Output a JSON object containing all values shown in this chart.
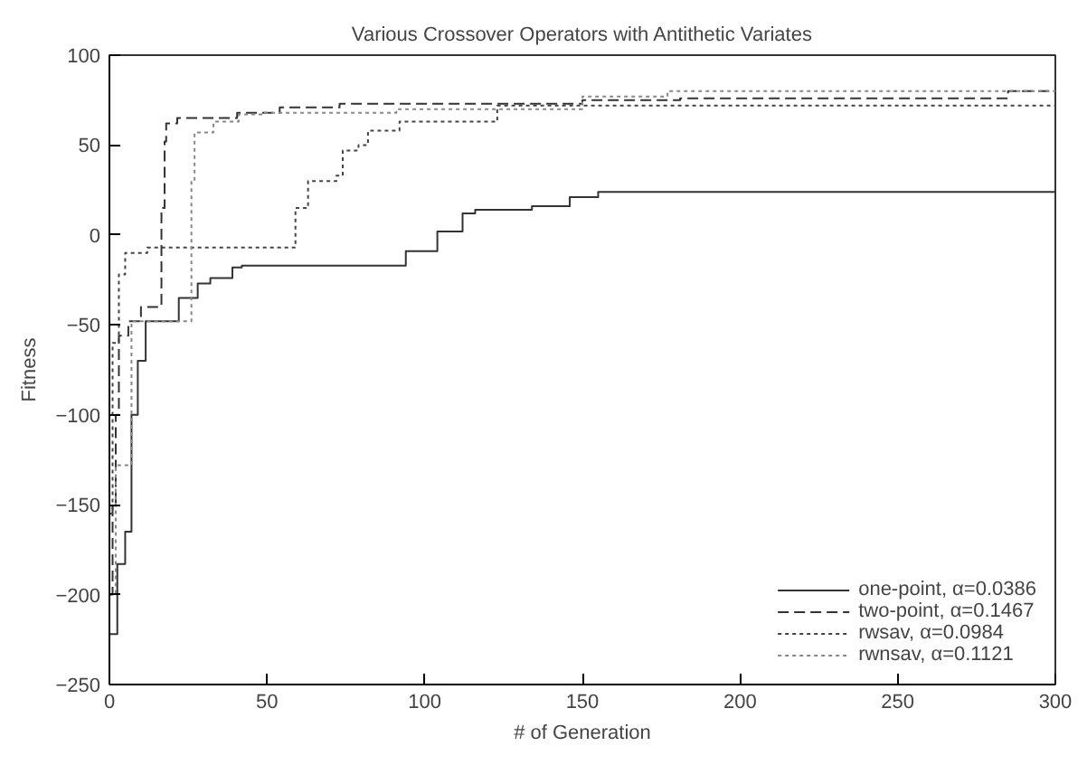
{
  "chart_data": {
    "type": "step",
    "title": "Various Crossover Operators with Antithetic Variates",
    "xlabel": "# of Generation",
    "ylabel": "Fitness",
    "xlim": [
      0,
      300
    ],
    "xticks": [
      0,
      50,
      100,
      150,
      200,
      250,
      300
    ],
    "ylim": [
      -250,
      100
    ],
    "yticks": [
      -250,
      -200,
      -150,
      -100,
      -50,
      0,
      50,
      100
    ],
    "grid": false,
    "legend": "bottom right",
    "series": [
      {
        "name": "one-point, α=0.0386",
        "color": "#333333",
        "line_style": "solid",
        "x": [
          0,
          2.5,
          5,
          7,
          9,
          11.5,
          22,
          28,
          32,
          39,
          42,
          94,
          104,
          112,
          116,
          134,
          146,
          155,
          300
        ],
        "values": [
          -222,
          -183,
          -165,
          -100,
          -70,
          -48,
          -35,
          -27,
          -24,
          -18,
          -17,
          -9,
          2,
          12,
          14,
          16,
          21,
          24,
          24
        ]
      },
      {
        "name": "two-point, α=0.1467",
        "color": "#333333",
        "line_style": "dashed",
        "x": [
          0,
          1,
          2,
          3,
          6,
          10,
          16.5,
          17.5,
          18,
          21.5,
          40.5,
          54,
          73,
          150,
          181,
          285,
          300
        ],
        "values": [
          -200,
          -150,
          -100,
          -56,
          -48,
          -40,
          15,
          52,
          62,
          65,
          68,
          71,
          73,
          75,
          76,
          80,
          80
        ]
      },
      {
        "name": "rwsav, α=0.0984",
        "color": "#444444",
        "line_style": "dotted",
        "x": [
          0,
          1,
          3,
          5,
          12,
          59,
          63,
          72,
          74,
          79,
          82,
          92,
          123,
          300
        ],
        "values": [
          -155,
          -60,
          -22,
          -10,
          -7,
          15,
          30,
          33,
          47,
          50,
          58,
          63,
          72,
          72
        ]
      },
      {
        "name": "rwnsav, α=0.1121",
        "color": "#888888",
        "line_style": "dotted",
        "x": [
          0,
          2,
          7,
          26,
          27,
          33,
          41,
          49,
          91,
          150,
          177,
          300
        ],
        "values": [
          -200,
          -128,
          -48,
          30,
          57,
          63,
          67,
          68,
          70,
          77,
          80,
          80
        ]
      }
    ]
  }
}
